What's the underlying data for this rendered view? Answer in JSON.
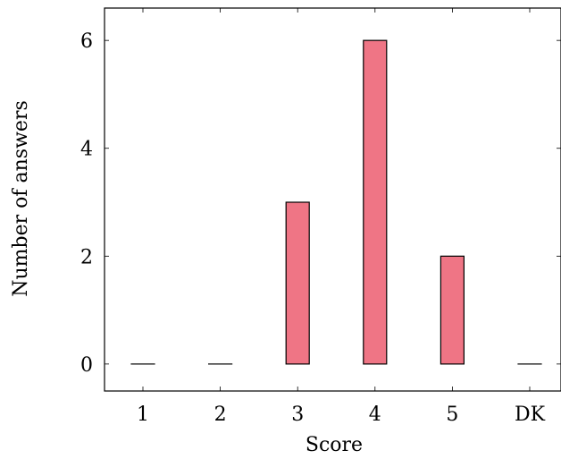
{
  "chart_data": {
    "type": "bar",
    "categories": [
      "1",
      "2",
      "3",
      "4",
      "5",
      "DK"
    ],
    "values": [
      0,
      0,
      3,
      6,
      2,
      0
    ],
    "xlabel": "Score",
    "ylabel": "Number of answers",
    "ylim": [
      -0.5,
      6.6
    ],
    "yticks": [
      0,
      2,
      4,
      6
    ],
    "grid": false,
    "bar_color": "#ef7585",
    "edge_color": "#000000"
  }
}
